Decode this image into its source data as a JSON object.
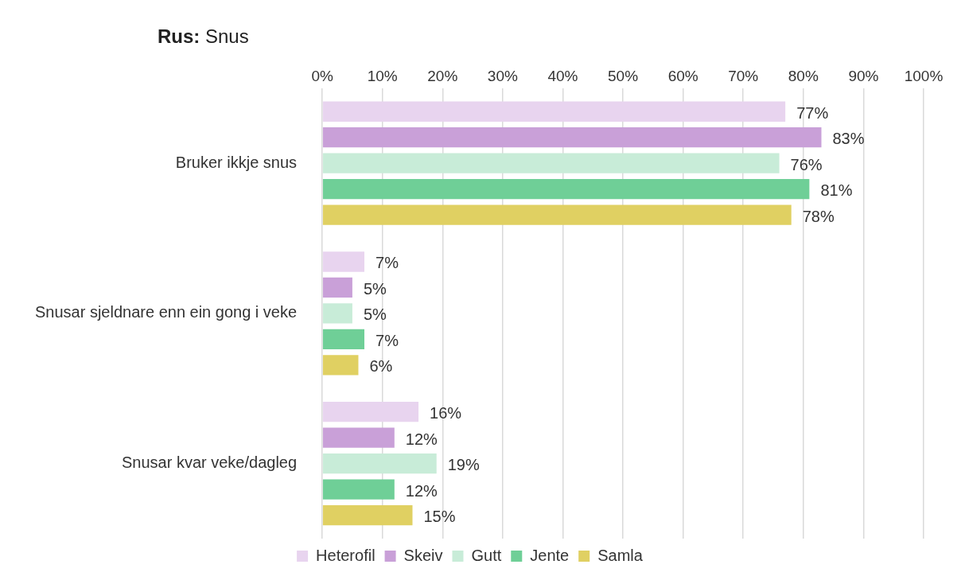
{
  "chart_data": {
    "type": "bar",
    "orientation": "horizontal",
    "title": "Rus: Snus",
    "categories": [
      "Bruker ikkje snus",
      "Snusar sjeldnare enn ein gong i veke",
      "Snusar kvar veke/dagleg"
    ],
    "series": [
      {
        "name": "Heterofil",
        "color": "#e8d4ef",
        "values": [
          77,
          7,
          16
        ],
        "value_labels": [
          "77%",
          "7%",
          "16%"
        ]
      },
      {
        "name": "Skeiv",
        "color": "#c9a0d8",
        "values": [
          83,
          5,
          12
        ],
        "value_labels": [
          "83%",
          "5%",
          "12%"
        ]
      },
      {
        "name": "Gutt",
        "color": "#c8ecd8",
        "values": [
          76,
          5,
          19
        ],
        "value_labels": [
          "76%",
          "5%",
          "19%"
        ]
      },
      {
        "name": "Jente",
        "color": "#6fcf97",
        "values": [
          81,
          7,
          12
        ],
        "value_labels": [
          "81%",
          "7%",
          "12%"
        ]
      },
      {
        "name": "Samla",
        "color": "#e0d062",
        "values": [
          78,
          6,
          15
        ],
        "value_labels": [
          "78%",
          "6%",
          "15%"
        ]
      }
    ],
    "xlim": [
      0,
      100
    ],
    "xticks": [
      {
        "value": 0,
        "label": "0%"
      },
      {
        "value": 10,
        "label": "10%"
      },
      {
        "value": 20,
        "label": "20%"
      },
      {
        "value": 30,
        "label": "30%"
      },
      {
        "value": 40,
        "label": "40%"
      },
      {
        "value": 50,
        "label": "50%"
      },
      {
        "value": 60,
        "label": "60%"
      },
      {
        "value": 70,
        "label": "70%"
      },
      {
        "value": 80,
        "label": "80%"
      },
      {
        "value": 90,
        "label": "90%"
      },
      {
        "value": 100,
        "label": "100%"
      }
    ],
    "grid": "x",
    "legend": "bottom"
  }
}
